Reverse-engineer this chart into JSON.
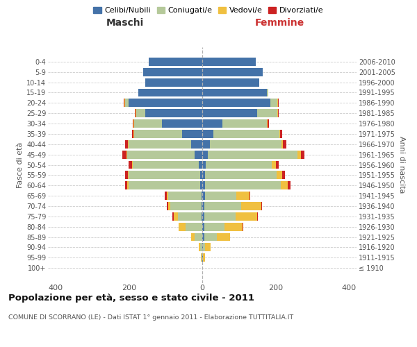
{
  "age_groups": [
    "100+",
    "95-99",
    "90-94",
    "85-89",
    "80-84",
    "75-79",
    "70-74",
    "65-69",
    "60-64",
    "55-59",
    "50-54",
    "45-49",
    "40-44",
    "35-39",
    "30-34",
    "25-29",
    "20-24",
    "15-19",
    "10-14",
    "5-9",
    "0-4"
  ],
  "birth_years": [
    "≤ 1910",
    "1911-1915",
    "1916-1920",
    "1921-1925",
    "1926-1930",
    "1931-1935",
    "1936-1940",
    "1941-1945",
    "1946-1950",
    "1951-1955",
    "1956-1960",
    "1961-1965",
    "1966-1970",
    "1971-1975",
    "1976-1980",
    "1981-1985",
    "1986-1990",
    "1991-1995",
    "1996-2000",
    "2001-2005",
    "2006-2010"
  ],
  "males": {
    "celibe": [
      0,
      0,
      0,
      0,
      0,
      2,
      2,
      2,
      5,
      5,
      10,
      20,
      30,
      55,
      110,
      155,
      200,
      175,
      155,
      160,
      145
    ],
    "coniugato": [
      0,
      2,
      5,
      20,
      45,
      65,
      85,
      90,
      195,
      195,
      180,
      185,
      170,
      130,
      75,
      25,
      10,
      0,
      0,
      0,
      0
    ],
    "vedovo": [
      0,
      2,
      5,
      10,
      20,
      10,
      5,
      5,
      5,
      2,
      2,
      2,
      2,
      2,
      2,
      2,
      2,
      0,
      0,
      0,
      0
    ],
    "divorziato": [
      0,
      0,
      0,
      0,
      0,
      5,
      5,
      5,
      5,
      8,
      8,
      10,
      8,
      5,
      3,
      2,
      2,
      0,
      0,
      0,
      0
    ]
  },
  "females": {
    "nubile": [
      0,
      2,
      2,
      5,
      5,
      5,
      5,
      8,
      8,
      8,
      10,
      15,
      20,
      30,
      55,
      150,
      185,
      175,
      155,
      165,
      145
    ],
    "coniugata": [
      0,
      0,
      5,
      35,
      55,
      85,
      100,
      85,
      205,
      195,
      180,
      245,
      195,
      180,
      120,
      55,
      20,
      5,
      0,
      0,
      0
    ],
    "vedova": [
      0,
      5,
      15,
      35,
      50,
      60,
      55,
      35,
      20,
      15,
      10,
      8,
      5,
      2,
      2,
      2,
      2,
      0,
      0,
      0,
      0
    ],
    "divorziata": [
      0,
      0,
      0,
      0,
      2,
      2,
      2,
      2,
      8,
      8,
      8,
      10,
      8,
      5,
      5,
      2,
      2,
      0,
      0,
      0,
      0
    ]
  },
  "colors": {
    "celibe": "#4472a8",
    "coniugato": "#b5c99a",
    "vedovo": "#f0c040",
    "divorziato": "#cc2222"
  },
  "legend_labels": [
    "Celibi/Nubili",
    "Coniugati/e",
    "Vedovi/e",
    "Divorziati/e"
  ],
  "label_maschi": "Maschi",
  "label_femmine": "Femmine",
  "ylabel_left": "Fasce di età",
  "ylabel_right": "Anni di nascita",
  "title": "Popolazione per età, sesso e stato civile - 2011",
  "subtitle": "COMUNE DI SCORRANO (LE) - Dati ISTAT 1° gennaio 2011 - Elaborazione TUTTITALIA.IT",
  "xlim": 420,
  "grid_color": "#cccccc"
}
